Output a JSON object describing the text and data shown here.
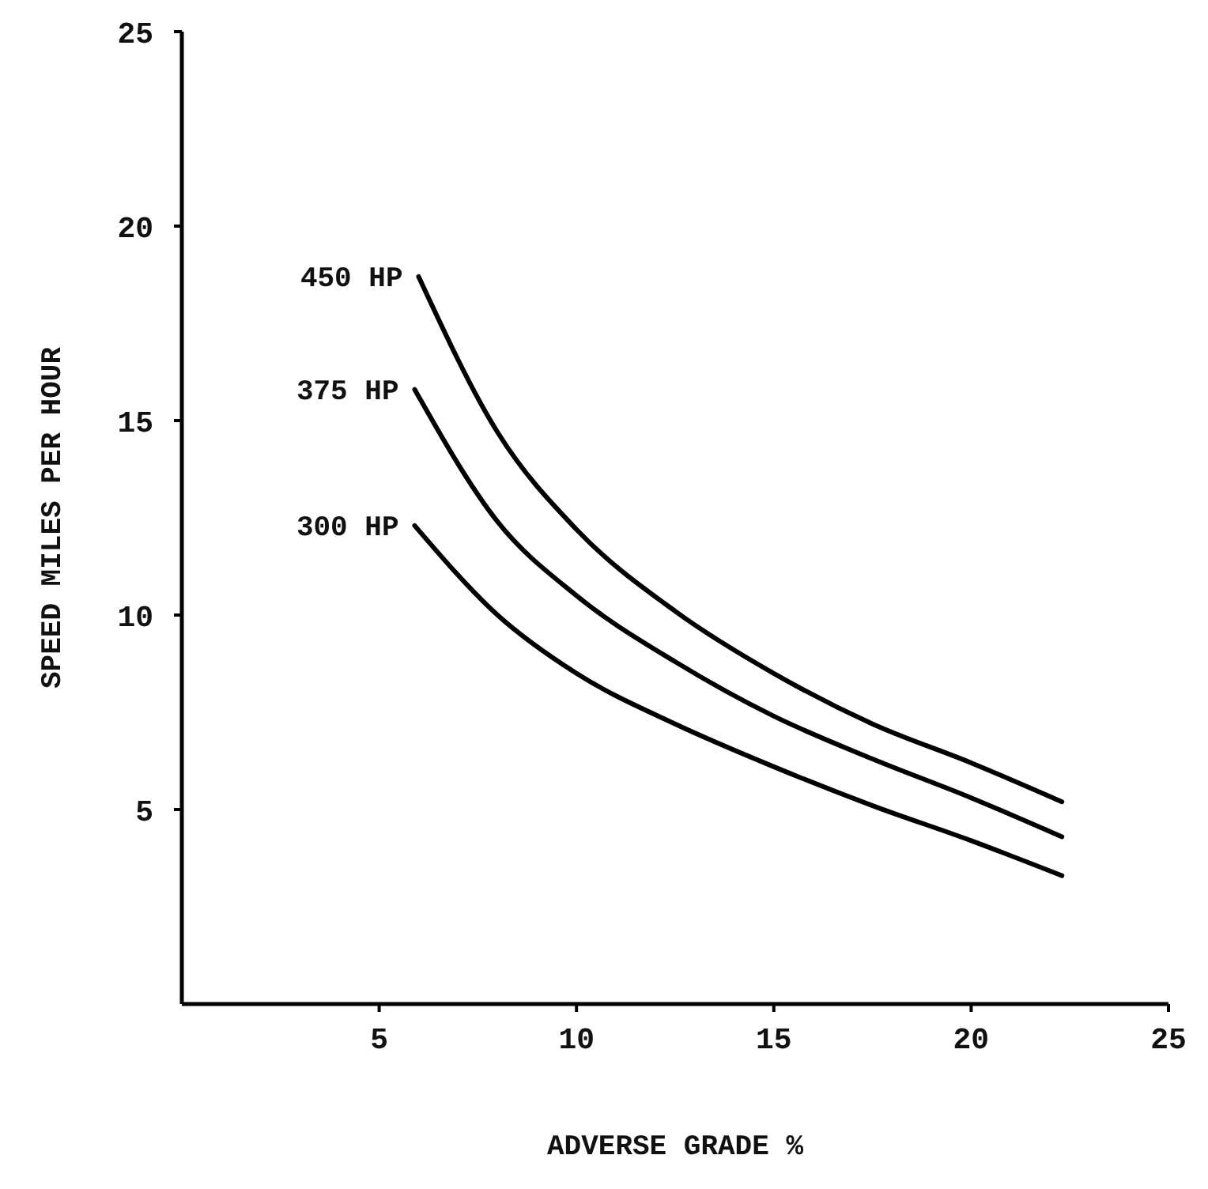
{
  "chart_data": {
    "type": "line",
    "xlabel": "ADVERSE GRADE %",
    "ylabel": "SPEED MILES PER HOUR",
    "xlim": [
      0,
      25
    ],
    "ylim": [
      0,
      25
    ],
    "xticks": [
      5,
      10,
      15,
      20,
      25
    ],
    "yticks": [
      5,
      10,
      15,
      20,
      25
    ],
    "grid": false,
    "legend": false,
    "marker": "none",
    "line_style": "solid",
    "series": [
      {
        "name": "450 HP",
        "color": "#000000",
        "x": [
          6,
          8,
          10,
          12.5,
          15,
          17.5,
          20,
          22.3
        ],
        "values": [
          18.7,
          14.7,
          12.2,
          10.1,
          8.5,
          7.2,
          6.2,
          5.2
        ]
      },
      {
        "name": "375 HP",
        "color": "#000000",
        "x": [
          5.9,
          8,
          10,
          12.5,
          15,
          17.5,
          20,
          22.3
        ],
        "values": [
          15.8,
          12.4,
          10.5,
          8.8,
          7.4,
          6.3,
          5.3,
          4.3
        ]
      },
      {
        "name": "300 HP",
        "color": "#000000",
        "x": [
          5.9,
          8,
          10,
          12.5,
          15,
          17.5,
          20,
          22.3
        ],
        "values": [
          12.3,
          10.0,
          8.5,
          7.2,
          6.1,
          5.1,
          4.2,
          3.3
        ]
      }
    ]
  }
}
